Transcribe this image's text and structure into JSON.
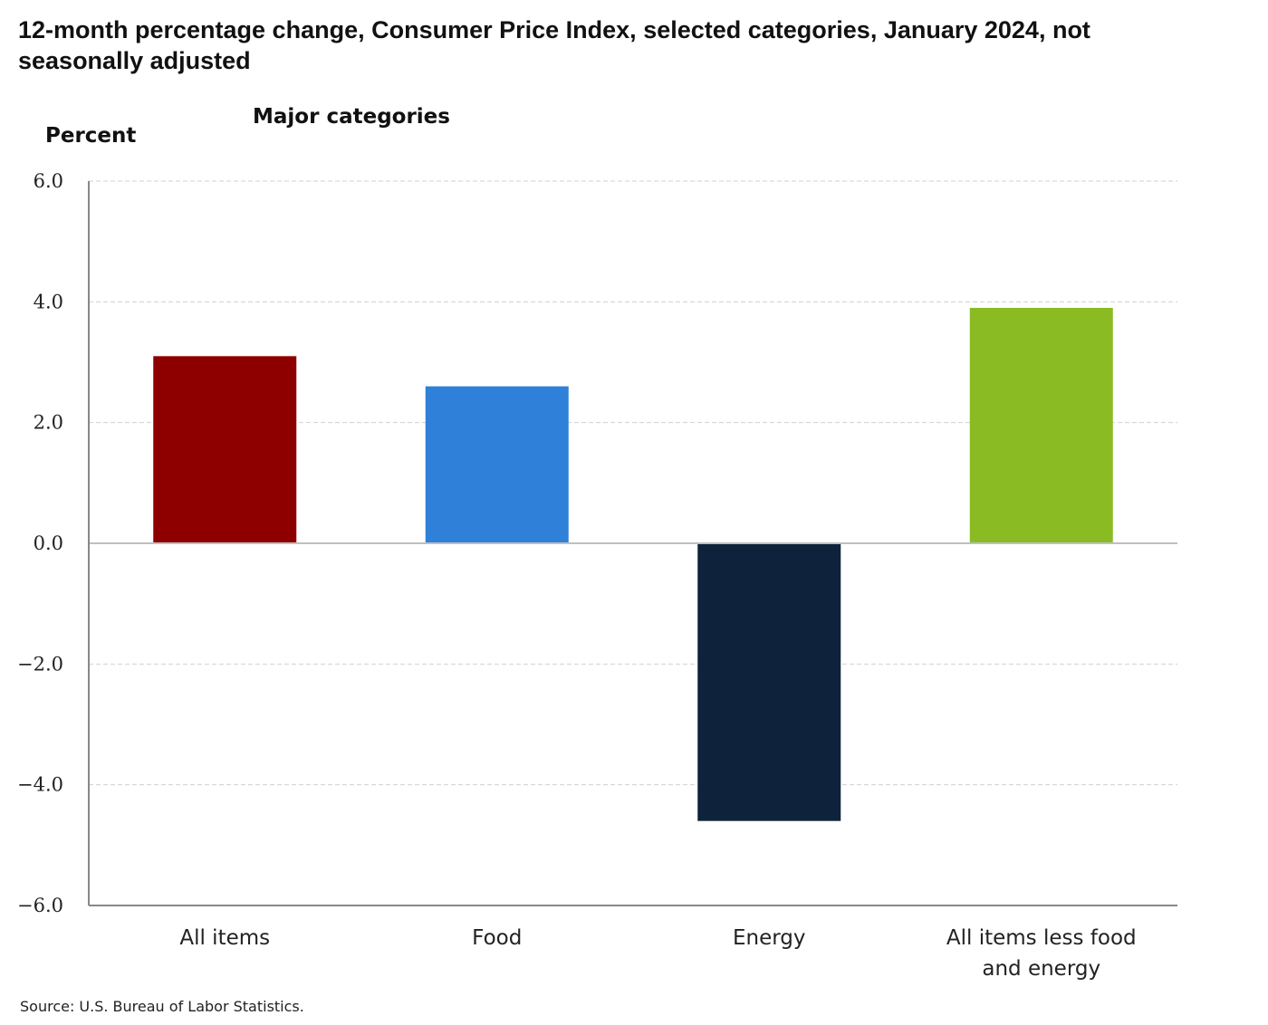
{
  "chart_data": {
    "type": "bar",
    "title": "12-month percentage change, Consumer Price Index, selected categories, January 2024, not seasonally adjusted",
    "subtitle": "Major categories",
    "xlabel": "",
    "ylabel": "Percent",
    "ylim": [
      -6.0,
      6.0
    ],
    "yticks": [
      "6.0",
      "4.0",
      "2.0",
      "0.0",
      "-2.0",
      "-4.0",
      "-6.0"
    ],
    "ytick_values": [
      6,
      4,
      2,
      0,
      -2,
      -4,
      -6
    ],
    "grid": true,
    "categories": [
      "All items",
      "Food",
      "Energy",
      "All items less food and energy"
    ],
    "values": [
      3.1,
      2.6,
      -4.6,
      3.9
    ],
    "colors": [
      "#8e0000",
      "#2f80d9",
      "#0e233b",
      "#8bbb23"
    ],
    "source": "Source: U.S. Bureau of Labor Statistics."
  }
}
